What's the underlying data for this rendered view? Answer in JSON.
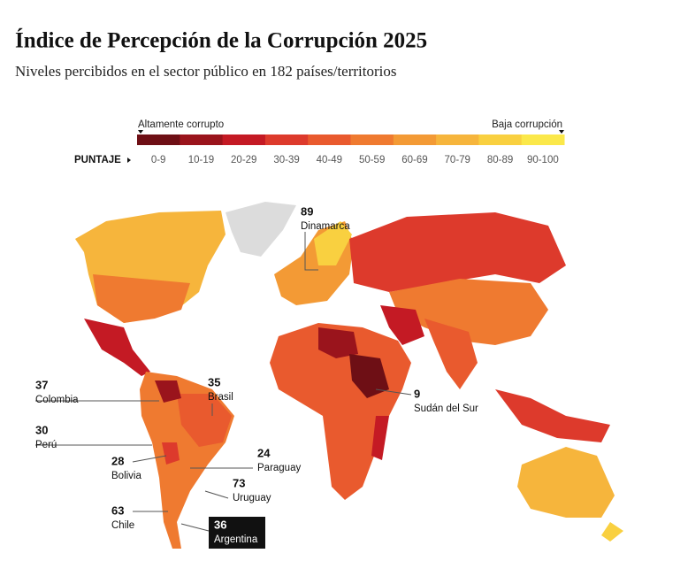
{
  "header": {
    "title": "Índice de Percepción de la Corrupción 2025",
    "subtitle": "Niveles percibidos en el sector público en 182 países/territorios"
  },
  "legend": {
    "low_label": "Altamente corrupto",
    "high_label": "Baja corrupción",
    "score_label": "PUNTAJE",
    "bins": [
      {
        "label": "0-9",
        "color": "#6e0f15"
      },
      {
        "label": "10-19",
        "color": "#9a141c"
      },
      {
        "label": "20-29",
        "color": "#c41a24"
      },
      {
        "label": "30-39",
        "color": "#dd3a2c"
      },
      {
        "label": "40-49",
        "color": "#e95a2e"
      },
      {
        "label": "50-59",
        "color": "#ef7a30"
      },
      {
        "label": "60-69",
        "color": "#f39a35"
      },
      {
        "label": "70-79",
        "color": "#f6b53c"
      },
      {
        "label": "80-89",
        "color": "#f9d040"
      },
      {
        "label": "90-100",
        "color": "#fbe84a"
      }
    ]
  },
  "annotations": [
    {
      "score": 89,
      "name": "Dinamarca"
    },
    {
      "score": 37,
      "name": "Colombia"
    },
    {
      "score": 35,
      "name": "Brasil"
    },
    {
      "score": 30,
      "name": "Perú"
    },
    {
      "score": 28,
      "name": "Bolivia"
    },
    {
      "score": 24,
      "name": "Paraguay"
    },
    {
      "score": 73,
      "name": "Uruguay"
    },
    {
      "score": 63,
      "name": "Chile"
    },
    {
      "score": 36,
      "name": "Argentina"
    },
    {
      "score": 9,
      "name": "Sudán del Sur"
    }
  ]
}
